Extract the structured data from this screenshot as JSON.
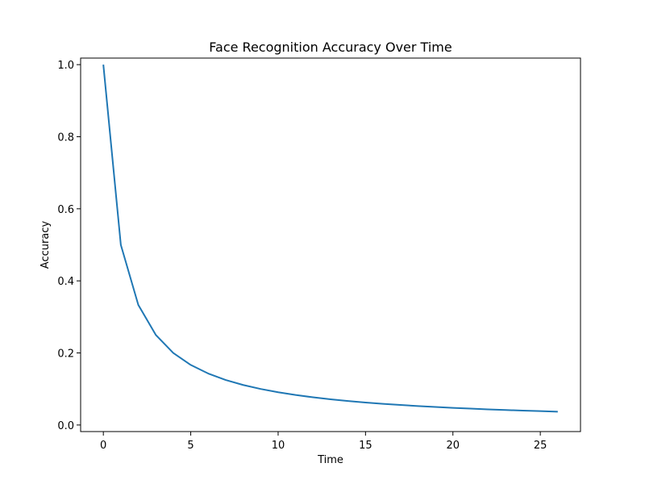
{
  "chart_data": {
    "type": "line",
    "title": "Face Recognition Accuracy Over Time",
    "xlabel": "Time",
    "ylabel": "Accuracy",
    "xlim": [
      -1.3,
      27.3
    ],
    "ylim": [
      -0.0182,
      1.0182
    ],
    "xticks": [
      0,
      5,
      10,
      15,
      20,
      25
    ],
    "yticks": [
      0.0,
      0.2,
      0.4,
      0.6,
      0.8,
      1.0
    ],
    "grid": false,
    "series": [
      {
        "color": "#1f77b4",
        "x": [
          0,
          1,
          2,
          3,
          4,
          5,
          6,
          7,
          8,
          9,
          10,
          11,
          12,
          13,
          14,
          15,
          16,
          17,
          18,
          19,
          20,
          21,
          22,
          23,
          24,
          25,
          26
        ],
        "y": [
          1.0,
          0.5,
          0.3333,
          0.25,
          0.2,
          0.1667,
          0.1429,
          0.125,
          0.1111,
          0.1,
          0.0909,
          0.0833,
          0.0769,
          0.0714,
          0.0667,
          0.0625,
          0.0588,
          0.0556,
          0.0526,
          0.05,
          0.0476,
          0.0455,
          0.0435,
          0.0417,
          0.04,
          0.0385,
          0.037
        ]
      }
    ]
  }
}
